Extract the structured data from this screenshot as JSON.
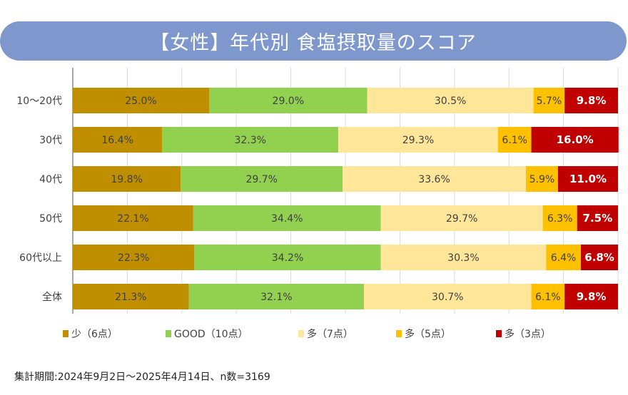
{
  "title": "【女性】年代別 食塩摂取量のスコア",
  "note": "集計期間:2024年9月2日〜2025年4月14日、n数=3169",
  "chart_data": {
    "type": "bar",
    "orientation": "horizontal",
    "stacked": "100%",
    "categories": [
      "10〜20代",
      "30代",
      "40代",
      "50代",
      "60代以上",
      "全体"
    ],
    "xlim": [
      0,
      100
    ],
    "grid": true,
    "legend_position": "bottom",
    "series": [
      {
        "name": "少（6点）",
        "color": "#bf8f00",
        "label_color": "#404040",
        "values": [
          25.0,
          16.4,
          19.8,
          22.1,
          22.3,
          21.3
        ]
      },
      {
        "name": "GOOD（10点）",
        "color": "#92d050",
        "label_color": "#404040",
        "values": [
          29.0,
          32.3,
          29.7,
          34.4,
          34.2,
          32.1
        ]
      },
      {
        "name": "多（7点）",
        "color": "#ffe699",
        "label_color": "#404040",
        "values": [
          30.5,
          29.3,
          33.6,
          29.7,
          30.3,
          30.7
        ]
      },
      {
        "name": "多（5点）",
        "color": "#ffc000",
        "label_color": "#404040",
        "values": [
          5.7,
          6.1,
          5.9,
          6.3,
          6.4,
          6.1
        ]
      },
      {
        "name": "多（3点）",
        "color": "#c00000",
        "label_color": "#ffffff",
        "values": [
          9.8,
          16.0,
          11.0,
          7.5,
          6.8,
          9.8
        ]
      }
    ]
  }
}
